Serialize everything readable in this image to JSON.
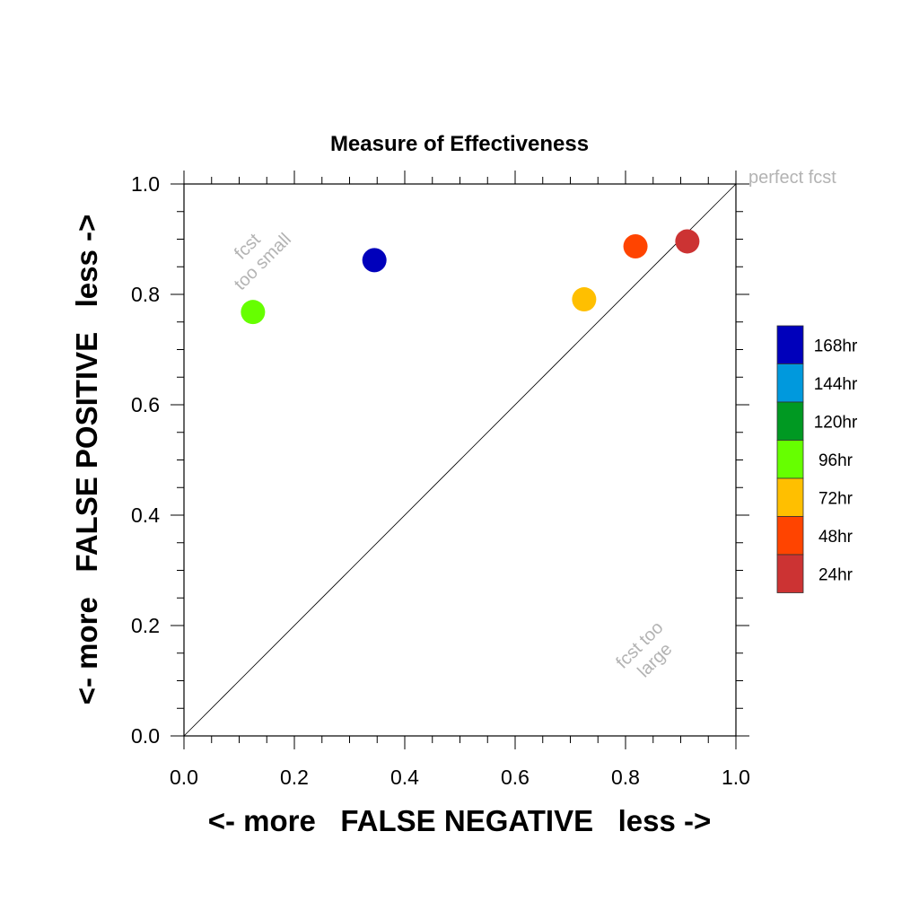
{
  "chart_data": {
    "type": "scatter",
    "title": "Measure of Effectiveness",
    "xlabel": "<- more   FALSE NEGATIVE   less ->",
    "ylabel": "<- more   FALSE POSITIVE   less ->",
    "xlim": [
      0,
      1
    ],
    "ylim": [
      0,
      1
    ],
    "xticks": [
      "0.0",
      "0.2",
      "0.4",
      "0.6",
      "0.8",
      "1.0"
    ],
    "yticks": [
      "0.0",
      "0.2",
      "0.4",
      "0.6",
      "0.8",
      "1.0"
    ],
    "grid": false,
    "legend_position": "right",
    "points": [
      {
        "x": 0.345,
        "y": 0.862,
        "color": "#0000bb"
      },
      {
        "x": 0.125,
        "y": 0.768,
        "color": "#66ff00"
      },
      {
        "x": 0.725,
        "y": 0.791,
        "color": "#ffbf00"
      },
      {
        "x": 0.818,
        "y": 0.887,
        "color": "#ff4400"
      },
      {
        "x": 0.912,
        "y": 0.896,
        "color": "#cc3333"
      }
    ],
    "legend": [
      {
        "label": "168hr",
        "color": "#0000bb"
      },
      {
        "label": "144hr",
        "color": "#0099dd"
      },
      {
        "label": "120hr",
        "color": "#009922"
      },
      {
        "label": "96hr",
        "color": "#66ff00"
      },
      {
        "label": "72hr",
        "color": "#ffbf00"
      },
      {
        "label": "48hr",
        "color": "#ff4400"
      },
      {
        "label": "24hr",
        "color": "#cc3333"
      }
    ],
    "annotations": {
      "perfect": "perfect fcst",
      "small_line1": "fcst",
      "small_line2": "too small",
      "large_line1": "fcst too",
      "large_line2": "large"
    },
    "annotation_color": "#b3b3b3"
  }
}
